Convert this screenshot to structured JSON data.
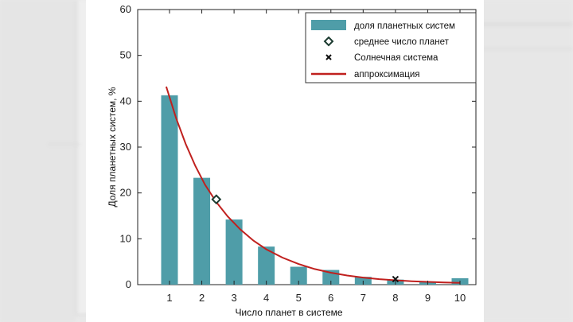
{
  "chart_data": {
    "type": "bar",
    "xlabel": "Число планет в системе",
    "ylabel": "Доля планетных систем, %",
    "ylim": [
      0,
      60
    ],
    "yticks": [
      0,
      10,
      20,
      30,
      40,
      50,
      60
    ],
    "categories": [
      "1",
      "2",
      "3",
      "4",
      "5",
      "6",
      "7",
      "8",
      "9",
      "10"
    ],
    "series": [
      {
        "name": "доля планетных систем",
        "kind": "bar",
        "color": "#4f9da8",
        "values": [
          41.3,
          23.3,
          14.2,
          8.3,
          3.9,
          3.2,
          1.7,
          1.1,
          0.7,
          1.4
        ]
      },
      {
        "name": "среднее число планет",
        "kind": "marker-diamond",
        "color": "#1c3b30",
        "points": [
          {
            "x": 2.45,
            "y": 18.6
          }
        ]
      },
      {
        "name": "Солнечная система",
        "kind": "marker-x",
        "color": "#111111",
        "points": [
          {
            "x": 8,
            "y": 1.2
          }
        ]
      },
      {
        "name": "аппроксимация",
        "kind": "line",
        "color": "#c0201e",
        "points": [
          {
            "x": 0.9,
            "y": 43.2
          },
          {
            "x": 1.2,
            "y": 36.4
          },
          {
            "x": 1.5,
            "y": 30.7
          },
          {
            "x": 1.8,
            "y": 25.9
          },
          {
            "x": 2.1,
            "y": 21.8
          },
          {
            "x": 2.45,
            "y": 18.0
          },
          {
            "x": 2.8,
            "y": 14.9
          },
          {
            "x": 3.2,
            "y": 12.0
          },
          {
            "x": 3.6,
            "y": 9.6
          },
          {
            "x": 4.0,
            "y": 7.7
          },
          {
            "x": 4.5,
            "y": 5.9
          },
          {
            "x": 5.0,
            "y": 4.5
          },
          {
            "x": 5.5,
            "y": 3.4
          },
          {
            "x": 6.0,
            "y": 2.6
          },
          {
            "x": 6.5,
            "y": 2.0
          },
          {
            "x": 7.0,
            "y": 1.55
          },
          {
            "x": 7.5,
            "y": 1.2
          },
          {
            "x": 8.0,
            "y": 0.95
          },
          {
            "x": 8.5,
            "y": 0.75
          },
          {
            "x": 9.0,
            "y": 0.6
          },
          {
            "x": 9.5,
            "y": 0.48
          },
          {
            "x": 10.0,
            "y": 0.4
          }
        ]
      }
    ],
    "grid": false,
    "legend_position": "top-right"
  }
}
